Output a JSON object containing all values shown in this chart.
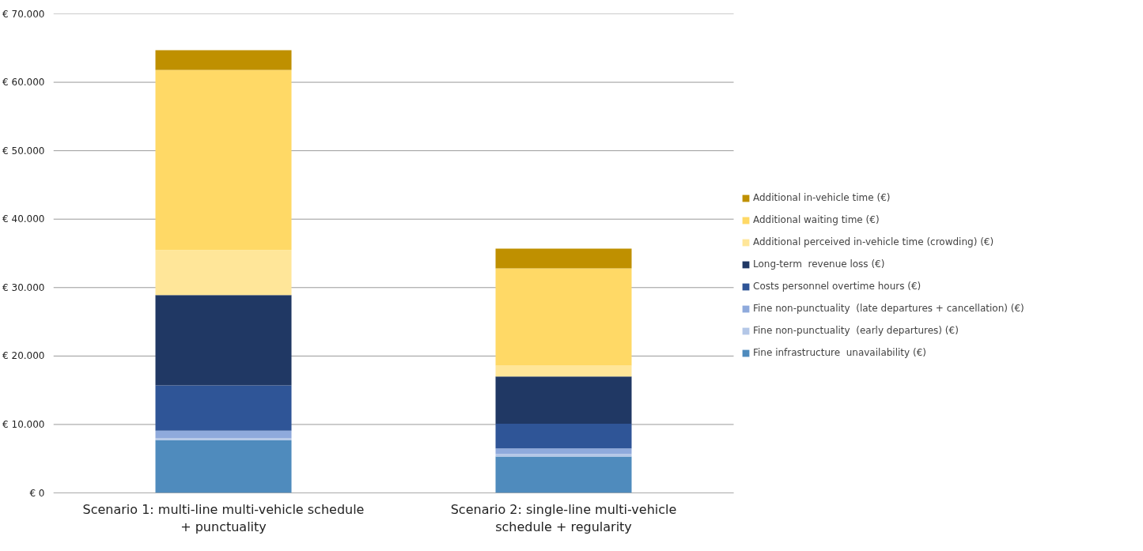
{
  "chart_data": {
    "type": "bar",
    "stacked": true,
    "categories": [
      "Scenario 1: multi-line multi-vehicle schedule + punctuality",
      "Scenario 2: single-line multi-vehicle schedule + regularity"
    ],
    "series": [
      {
        "name": "Fine infrastructure  unavailability (€)",
        "color": "#4f8bbd",
        "values": [
          7700,
          5300
        ]
      },
      {
        "name": "Fine non-punctuality  (early departures) (€)",
        "color": "#b4c7e7",
        "values": [
          300,
          400
        ]
      },
      {
        "name": "Fine non-punctuality  (late departures + cancellation) (€)",
        "color": "#8faadc",
        "values": [
          1100,
          800
        ]
      },
      {
        "name": "Costs personnel overtime hours (€)",
        "color": "#2f5597",
        "values": [
          6600,
          3600
        ]
      },
      {
        "name": "Long-term  revenue loss (€)",
        "color": "#203864",
        "values": [
          13200,
          6900
        ]
      },
      {
        "name": "Additional perceived in-vehicle time (crowding) (€)",
        "color": "#ffe699",
        "values": [
          6600,
          1600
        ]
      },
      {
        "name": "Additional waiting time (€)",
        "color": "#ffd966",
        "values": [
          26300,
          14200
        ]
      },
      {
        "name": "Additional in-vehicle time (€)",
        "color": "#bf9000",
        "values": [
          2900,
          2900
        ]
      }
    ],
    "ylim": [
      0,
      70000
    ],
    "yticks": [
      {
        "value": 0,
        "label": "€ 0"
      },
      {
        "value": 10000,
        "label": "€ 10.000"
      },
      {
        "value": 20000,
        "label": "€ 20.000"
      },
      {
        "value": 30000,
        "label": "€ 30.000"
      },
      {
        "value": 40000,
        "label": "€ 40.000"
      },
      {
        "value": 50000,
        "label": "€ 50.000"
      },
      {
        "value": 60000,
        "label": "€ 60.000"
      },
      {
        "value": 70000,
        "label": "€ 70.000"
      }
    ],
    "grid": "y",
    "legend": "right"
  }
}
